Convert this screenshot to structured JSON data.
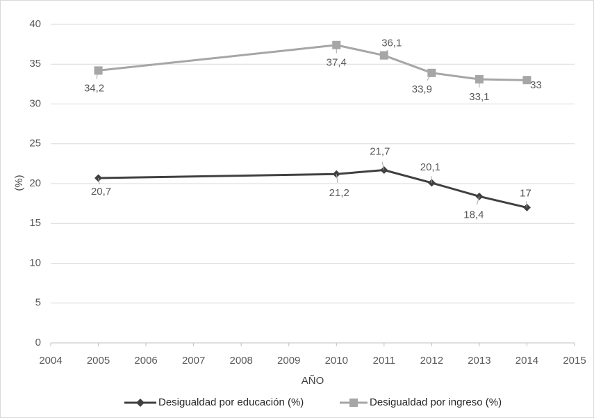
{
  "chart_data": {
    "type": "line",
    "title": "",
    "xlabel": "AÑO",
    "ylabel": "(%)",
    "xlim": [
      2004,
      2015
    ],
    "ylim": [
      0,
      40
    ],
    "xticks": [
      "2004",
      "2005",
      "2006",
      "2007",
      "2008",
      "2009",
      "2010",
      "2011",
      "2012",
      "2013",
      "2014",
      "2015"
    ],
    "yticks": [
      "0",
      "5",
      "10",
      "15",
      "20",
      "25",
      "30",
      "35",
      "40"
    ],
    "grid": "horizontal",
    "legend_position": "bottom",
    "series": [
      {
        "name": "Desigualdad por educación (%)",
        "color": "#404040",
        "marker": "diamond",
        "x": [
          2005,
          2010,
          2011,
          2012,
          2013,
          2014
        ],
        "y": [
          20.7,
          21.2,
          21.7,
          20.1,
          18.4,
          17
        ],
        "labels": [
          "20,7",
          "21,2",
          "21,7",
          "20,1",
          "18,4",
          "17"
        ]
      },
      {
        "name": "Desigualdad por ingreso (%)",
        "color": "#a6a6a6",
        "marker": "square",
        "x": [
          2005,
          2010,
          2011,
          2012,
          2013,
          2014
        ],
        "y": [
          34.2,
          37.4,
          36.1,
          33.9,
          33.1,
          33
        ],
        "labels": [
          "34,2",
          "37,4",
          "36,1",
          "33,9",
          "33,1",
          "33"
        ]
      }
    ]
  }
}
